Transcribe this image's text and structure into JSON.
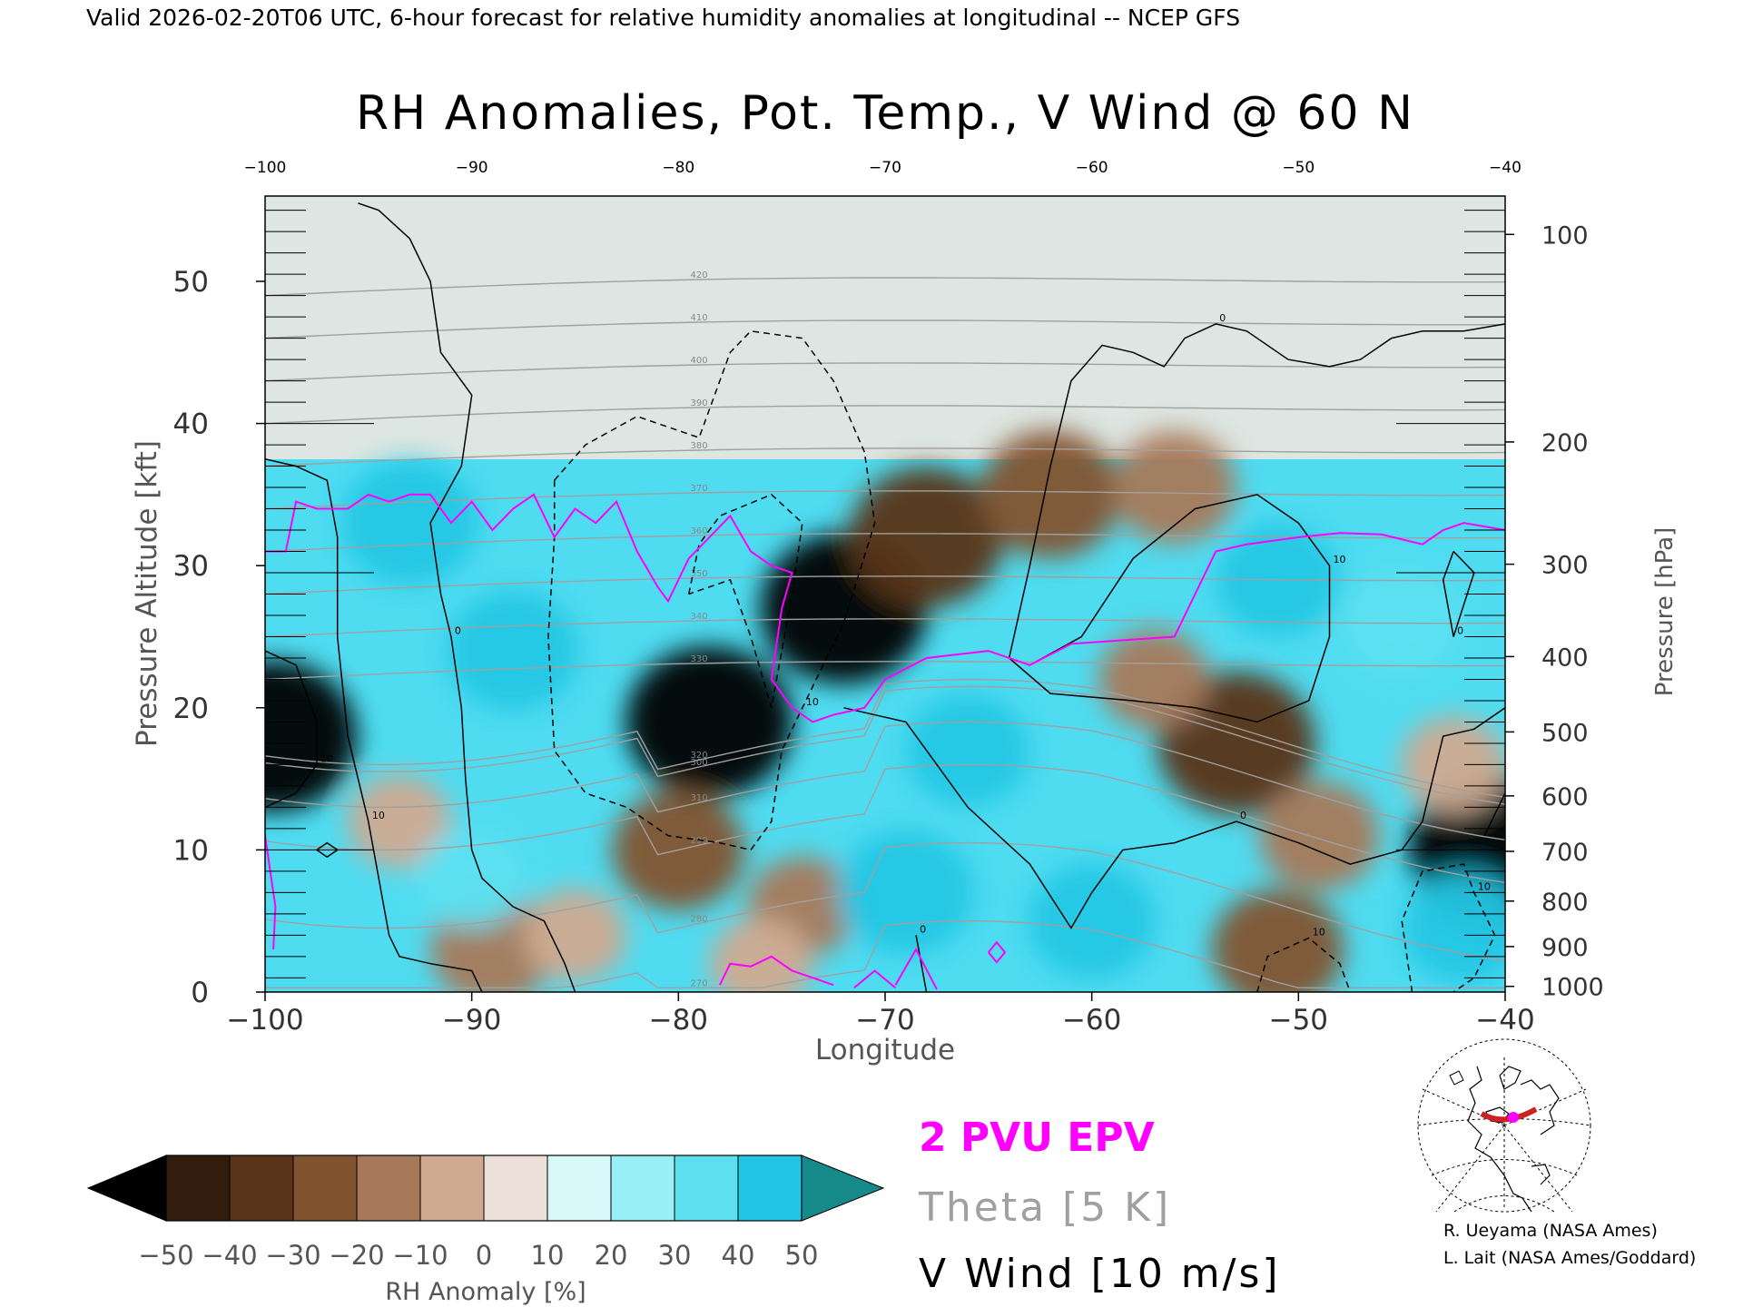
{
  "header": {
    "valid_line": "Valid 2026-02-20T06 UTC, 6-hour forecast for relative humidity anomalies at longitudinal -- NCEP GFS",
    "title": "RH Anomalies, Pot. Temp., V Wind @ 60 N"
  },
  "chart_data": {
    "type": "heatmap",
    "title": "RH Anomalies, Pot. Temp., V Wind @ 60 N",
    "xlabel": "Longitude",
    "ylabel_left": "Pressure Altitude [kft]",
    "ylabel_right": "Pressure [hPa]",
    "xlim": [
      -100,
      -40
    ],
    "ylim": [
      0,
      56
    ],
    "x_ticks": [
      -100,
      -90,
      -80,
      -70,
      -60,
      -50,
      -40
    ],
    "x_tick_labels": [
      "−100",
      "−90",
      "−80",
      "−70",
      "−60",
      "−50",
      "−40"
    ],
    "top_tick_labels": [
      "−100",
      "−90",
      "−80",
      "−70",
      "−60",
      "−50",
      "−40"
    ],
    "y_ticks": [
      0,
      10,
      20,
      30,
      40,
      50
    ],
    "y_tick_labels": [
      "0",
      "10",
      "20",
      "30",
      "40",
      "50"
    ],
    "pressure_ticks": [
      {
        "hpa": 1000,
        "kft": 0.4,
        "label": "1000"
      },
      {
        "hpa": 900,
        "kft": 3.2,
        "label": "900"
      },
      {
        "hpa": 800,
        "kft": 6.4,
        "label": "800"
      },
      {
        "hpa": 700,
        "kft": 9.9,
        "label": "700"
      },
      {
        "hpa": 600,
        "kft": 13.8,
        "label": "600"
      },
      {
        "hpa": 500,
        "kft": 18.3,
        "label": "500"
      },
      {
        "hpa": 400,
        "kft": 23.6,
        "label": "400"
      },
      {
        "hpa": 300,
        "kft": 30.1,
        "label": "300"
      },
      {
        "hpa": 200,
        "kft": 38.7,
        "label": "200"
      },
      {
        "hpa": 100,
        "kft": 53.3,
        "label": "100"
      }
    ],
    "colorbar": {
      "label": "RH Anomaly [%]",
      "levels": [
        -50,
        -40,
        -30,
        -20,
        -10,
        0,
        10,
        20,
        30,
        40,
        50
      ],
      "level_labels": [
        "−50",
        "−40",
        "−30",
        "−20",
        "−10",
        "0",
        "10",
        "20",
        "30",
        "40",
        "50"
      ],
      "colors": [
        "#321c0e",
        "#5a3419",
        "#82532f",
        "#a8785a",
        "#d0aa90",
        "#ede0d8",
        "#d8f8fa",
        "#9aeef6",
        "#5ce0f0",
        "#22c6e4",
        "#0c96bc",
        "#068c8c"
      ],
      "under_color": "#000000",
      "over_color": "#168a8a"
    },
    "rh_anomaly_blobs": [
      {
        "lon": -78.5,
        "kft": 19,
        "value": -55
      },
      {
        "lon": -72,
        "kft": 27,
        "value": -55
      },
      {
        "lon": -68,
        "kft": 32,
        "value": -48
      },
      {
        "lon": -62,
        "kft": 35,
        "value": -40
      },
      {
        "lon": -56,
        "kft": 35.5,
        "value": -30
      },
      {
        "lon": -80,
        "kft": 10,
        "value": -35
      },
      {
        "lon": -53,
        "kft": 17.5,
        "value": -50
      },
      {
        "lon": -57,
        "kft": 22,
        "value": -22
      },
      {
        "lon": -49,
        "kft": 11,
        "value": -28
      },
      {
        "lon": -51,
        "kft": 3,
        "value": -35
      },
      {
        "lon": -89,
        "kft": 3,
        "value": -30
      },
      {
        "lon": -85,
        "kft": 4,
        "value": -18
      },
      {
        "lon": -93.5,
        "kft": 12,
        "value": -18
      },
      {
        "lon": -99.6,
        "kft": 18,
        "value": -55
      },
      {
        "lon": -40.6,
        "kft": 10,
        "value": -55
      },
      {
        "lon": -42.5,
        "kft": 16,
        "value": -20
      },
      {
        "lon": -74,
        "kft": 6,
        "value": -22
      },
      {
        "lon": -76,
        "kft": 2,
        "value": -18
      },
      {
        "lon": -88,
        "kft": 24,
        "value": 35
      },
      {
        "lon": -93,
        "kft": 33,
        "value": 38
      },
      {
        "lon": -66,
        "kft": 17,
        "value": 30
      },
      {
        "lon": -69,
        "kft": 7,
        "value": 38
      },
      {
        "lon": -60,
        "kft": 5,
        "value": 32
      },
      {
        "lon": -45,
        "kft": 26,
        "value": 28
      },
      {
        "lon": -51,
        "kft": 29,
        "value": 30
      },
      {
        "lon": -42,
        "kft": 4.5,
        "value": 30
      },
      {
        "lon": -90,
        "kft": 8,
        "value": 22
      }
    ],
    "epv_2pvu_line": [
      [
        -100,
        31
      ],
      [
        -99,
        31
      ],
      [
        -98.5,
        34.5
      ],
      [
        -97.5,
        34
      ],
      [
        -96,
        34
      ],
      [
        -95,
        35
      ],
      [
        -94,
        34.5
      ],
      [
        -93,
        35
      ],
      [
        -92,
        35
      ],
      [
        -91,
        33
      ],
      [
        -90,
        34.5
      ],
      [
        -89,
        32.5
      ],
      [
        -88,
        34
      ],
      [
        -87,
        35
      ],
      [
        -86,
        32
      ],
      [
        -85,
        34
      ],
      [
        -84,
        33
      ],
      [
        -83,
        34.5
      ],
      [
        -82,
        31
      ],
      [
        -81,
        28.5
      ],
      [
        -80.5,
        27.5
      ],
      [
        -79.5,
        30.5
      ],
      [
        -78.5,
        32
      ],
      [
        -77.5,
        33.5
      ],
      [
        -76.5,
        31
      ],
      [
        -75.5,
        30
      ],
      [
        -74.5,
        29.5
      ],
      [
        -75,
        27
      ],
      [
        -75.5,
        22
      ],
      [
        -74.5,
        20
      ],
      [
        -73.5,
        19
      ],
      [
        -72.5,
        19.5
      ],
      [
        -71,
        20
      ],
      [
        -70,
        22
      ],
      [
        -68,
        23.5
      ],
      [
        -65,
        24
      ],
      [
        -63,
        23
      ],
      [
        -61,
        24.5
      ],
      [
        -58,
        24.8
      ],
      [
        -56,
        25
      ],
      [
        -55,
        28
      ],
      [
        -54,
        31
      ],
      [
        -52.5,
        31.5
      ],
      [
        -50,
        32
      ],
      [
        -48,
        32.3
      ],
      [
        -46,
        32.2
      ],
      [
        -44,
        31.5
      ],
      [
        -43,
        32.5
      ],
      [
        -42,
        33
      ],
      [
        -40,
        32.5
      ]
    ],
    "epv_left_segment": [
      [
        -100,
        11
      ],
      [
        -99.7,
        8
      ],
      [
        -99.5,
        6
      ],
      [
        -99.6,
        3
      ]
    ],
    "epv_surface_pieces": [
      [
        [
          -78,
          0.5
        ],
        [
          -77.5,
          2
        ],
        [
          -76.5,
          1.8
        ],
        [
          -75.5,
          2.5
        ],
        [
          -74.5,
          1.5
        ],
        [
          -73.5,
          1
        ],
        [
          -72.5,
          0.5
        ]
      ],
      [
        [
          -71.5,
          0.3
        ],
        [
          -70.5,
          1.5
        ],
        [
          -69.5,
          0.3
        ]
      ],
      [
        [
          -69.5,
          0.5
        ],
        [
          -68.5,
          3
        ],
        [
          -67.5,
          0.2
        ]
      ],
      [
        [
          -65,
          2.8
        ],
        [
          -64.6,
          2.1
        ],
        [
          -64.2,
          2.8
        ],
        [
          -64.6,
          3.5
        ],
        [
          -65,
          2.8
        ]
      ]
    ],
    "v_wind_contours": [
      {
        "label": "0",
        "style": "solid",
        "points": [
          [
            -95.5,
            55.5
          ],
          [
            -94.5,
            55
          ],
          [
            -93,
            53
          ],
          [
            -92,
            50
          ],
          [
            -91.5,
            45
          ],
          [
            -90,
            42
          ],
          [
            -90.5,
            37
          ],
          [
            -92,
            33
          ],
          [
            -91.5,
            28
          ],
          [
            -91,
            25
          ],
          [
            -90.5,
            20
          ],
          [
            -90.3,
            15
          ],
          [
            -90,
            10
          ],
          [
            -89.5,
            8
          ],
          [
            -88,
            6
          ],
          [
            -86.5,
            5
          ],
          [
            -85.5,
            2
          ],
          [
            -85,
            0
          ]
        ]
      },
      {
        "label": "10",
        "style": "solid",
        "points": [
          [
            -100,
            37.5
          ],
          [
            -98.5,
            37
          ],
          [
            -97,
            36
          ],
          [
            -96.5,
            32
          ],
          [
            -96.5,
            25
          ],
          [
            -96,
            18
          ],
          [
            -95,
            12
          ],
          [
            -94.5,
            8
          ],
          [
            -94,
            4
          ],
          [
            -93.5,
            2.5
          ],
          [
            -92,
            2
          ],
          [
            -90,
            1.5
          ],
          [
            -89.5,
            0
          ]
        ]
      },
      {
        "label": "10",
        "style": "solid",
        "points": [
          [
            -100,
            24
          ],
          [
            -98.5,
            23
          ],
          [
            -97.5,
            19
          ],
          [
            -97.5,
            16
          ],
          [
            -98.5,
            14
          ],
          [
            -100,
            13
          ]
        ]
      },
      {
        "label": "",
        "style": "solid",
        "points": [
          [
            -97.5,
            10
          ],
          [
            -97,
            10.5
          ],
          [
            -96.5,
            10
          ],
          [
            -97,
            9.5
          ],
          [
            -97.5,
            10
          ]
        ]
      },
      {
        "label": "0",
        "style": "solid",
        "points": [
          [
            -68,
            0
          ],
          [
            -68.5,
            4
          ]
        ]
      },
      {
        "label": "0",
        "style": "solid",
        "points": [
          [
            -64,
            23.5
          ],
          [
            -63,
            30
          ],
          [
            -62,
            37
          ],
          [
            -61,
            43
          ],
          [
            -59.5,
            45.5
          ],
          [
            -58,
            45
          ],
          [
            -56.5,
            44
          ],
          [
            -55.5,
            46
          ],
          [
            -54,
            47
          ],
          [
            -52.5,
            46.5
          ],
          [
            -50.5,
            44.5
          ],
          [
            -48.5,
            44
          ],
          [
            -47,
            44.5
          ],
          [
            -45.5,
            46
          ],
          [
            -44,
            46.5
          ],
          [
            -42,
            46.5
          ],
          [
            -40,
            47
          ]
        ]
      },
      {
        "label": "10",
        "style": "solid",
        "points": [
          [
            -64,
            23.5
          ],
          [
            -62,
            21
          ],
          [
            -58,
            20.5
          ],
          [
            -55,
            20
          ],
          [
            -52,
            19
          ],
          [
            -49.5,
            20.5
          ],
          [
            -48.5,
            25
          ],
          [
            -48.5,
            30
          ],
          [
            -50,
            33
          ],
          [
            -52,
            35
          ],
          [
            -55,
            34
          ],
          [
            -58,
            30.5
          ],
          [
            -60.5,
            25
          ],
          [
            -63,
            23
          ],
          [
            -64,
            23.5
          ]
        ]
      },
      {
        "label": "0",
        "style": "solid",
        "points": [
          [
            -72,
            20
          ],
          [
            -69,
            19
          ],
          [
            -66,
            13
          ],
          [
            -63,
            9
          ],
          [
            -61,
            4.5
          ],
          [
            -60,
            7
          ],
          [
            -58.5,
            10
          ],
          [
            -56,
            10.5
          ],
          [
            -53,
            12
          ],
          [
            -50,
            10.5
          ],
          [
            -47.5,
            9
          ],
          [
            -45,
            10
          ],
          [
            -44,
            12
          ],
          [
            -43,
            18
          ],
          [
            -41.5,
            18.5
          ],
          [
            -40,
            20
          ]
        ]
      },
      {
        "label": "0",
        "style": "solid",
        "points": [
          [
            -42.5,
            31
          ],
          [
            -41.5,
            29.5
          ],
          [
            -42.5,
            25
          ],
          [
            -43,
            29
          ],
          [
            -42.5,
            31
          ]
        ]
      },
      {
        "label": "",
        "style": "solid",
        "points": [
          [
            -41,
            11
          ],
          [
            -40,
            14
          ]
        ]
      },
      {
        "label": "10",
        "style": "dashed",
        "points": [
          [
            -86,
            36
          ],
          [
            -84.5,
            38.5
          ],
          [
            -82,
            40.5
          ],
          [
            -80,
            39.5
          ],
          [
            -79,
            39
          ],
          [
            -77.5,
            45
          ],
          [
            -76.5,
            46.5
          ],
          [
            -74,
            46
          ],
          [
            -72.5,
            43
          ],
          [
            -71,
            38
          ],
          [
            -70.5,
            33
          ],
          [
            -72,
            26
          ],
          [
            -74,
            20
          ],
          [
            -75,
            17
          ],
          [
            -75.5,
            12
          ],
          [
            -76.5,
            10
          ],
          [
            -78,
            10.5
          ],
          [
            -80.5,
            11
          ],
          [
            -82.5,
            13
          ],
          [
            -84.5,
            14
          ],
          [
            -86,
            17
          ],
          [
            -86.3,
            25
          ],
          [
            -86,
            32
          ],
          [
            -86,
            36
          ]
        ]
      },
      {
        "label": "",
        "style": "dashed",
        "points": [
          [
            -79.5,
            28
          ],
          [
            -79,
            31.5
          ],
          [
            -78,
            33.5
          ],
          [
            -75.5,
            35
          ],
          [
            -74,
            33
          ],
          [
            -74.5,
            28
          ],
          [
            -75.5,
            20
          ],
          [
            -76.5,
            25
          ],
          [
            -77.5,
            29
          ],
          [
            -79.5,
            28
          ]
        ]
      },
      {
        "label": "10",
        "style": "dashed",
        "points": [
          [
            -52,
            0
          ],
          [
            -51.5,
            2.5
          ],
          [
            -49.5,
            3.8
          ],
          [
            -48,
            2
          ],
          [
            -47.5,
            0
          ]
        ]
      },
      {
        "label": "10",
        "style": "dashed",
        "points": [
          [
            -44.5,
            0
          ],
          [
            -45,
            5
          ],
          [
            -44,
            8.5
          ],
          [
            -42,
            9
          ],
          [
            -41.5,
            7
          ],
          [
            -40.5,
            4
          ],
          [
            -41.5,
            1
          ],
          [
            -42.5,
            0
          ]
        ]
      }
    ],
    "theta_levels": [
      270,
      280,
      290,
      300,
      310,
      320,
      330,
      340,
      350,
      360,
      370,
      380,
      390,
      400,
      410,
      420
    ],
    "theta_labels": [
      "270",
      "280",
      "290",
      "300",
      "310",
      "320",
      "330",
      "340",
      "350",
      "360",
      "370",
      "380",
      "390",
      "400",
      "410",
      "420"
    ],
    "legend": {
      "epv": "2 PVU EPV",
      "theta": "Theta [5 K]",
      "vwind": "V Wind [10 m/s]",
      "epv_color": "#ff00ff",
      "theta_color": "#a0a0a0",
      "vwind_color": "#000000"
    }
  },
  "credits": {
    "line1": "R. Ueyama (NASA Ames)",
    "line2": "L. Lait (NASA Ames/Goddard)"
  }
}
